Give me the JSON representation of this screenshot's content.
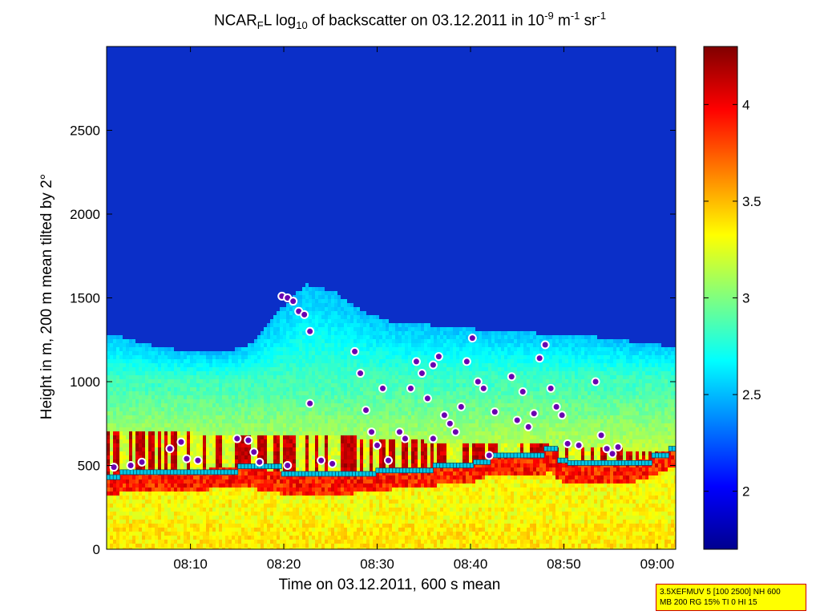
{
  "chart_data": {
    "type": "heatmap",
    "title_parts": {
      "pre": "NCAR",
      "sub1": "F",
      "mid": "L log",
      "sub2": "10",
      "post": " of backscatter on 03.12.2011 in 10",
      "sup1": "-9",
      "unit1": " m",
      "sup2": "-1",
      "unit2": " sr",
      "sup3": "-1"
    },
    "xlabel": "Time on 03.12.2011, 600 s mean",
    "ylabel": "Height in m, 200 m mean tilted by 2°",
    "xlim": [
      8.017,
      9.033
    ],
    "ylim": [
      0,
      3000
    ],
    "xticks": [
      {
        "v": 8.1667,
        "label": "08:10"
      },
      {
        "v": 8.3333,
        "label": "08:20"
      },
      {
        "v": 8.5,
        "label": "08:30"
      },
      {
        "v": 8.6667,
        "label": "08:40"
      },
      {
        "v": 8.8333,
        "label": "08:50"
      },
      {
        "v": 9.0,
        "label": "09:00"
      }
    ],
    "yticks": [
      {
        "v": 0,
        "label": "0"
      },
      {
        "v": 500,
        "label": "500"
      },
      {
        "v": 1000,
        "label": "1000"
      },
      {
        "v": 1500,
        "label": "1500"
      },
      {
        "v": 2000,
        "label": "2000"
      },
      {
        "v": 2500,
        "label": "2500"
      }
    ],
    "colorbar": {
      "min": 1.7,
      "max": 4.3,
      "ticks": [
        {
          "v": 2,
          "label": "2"
        },
        {
          "v": 2.5,
          "label": "2.5"
        },
        {
          "v": 3,
          "label": "3"
        },
        {
          "v": 3.5,
          "label": "3.5"
        },
        {
          "v": 4,
          "label": "4"
        }
      ]
    },
    "cloud_top_profile": [
      [
        8.03,
        1280
      ],
      [
        8.08,
        1230
      ],
      [
        8.12,
        1200
      ],
      [
        8.17,
        1180
      ],
      [
        8.22,
        1170
      ],
      [
        8.27,
        1220
      ],
      [
        8.3,
        1330
      ],
      [
        8.33,
        1450
      ],
      [
        8.37,
        1580
      ],
      [
        8.42,
        1540
      ],
      [
        8.47,
        1420
      ],
      [
        8.53,
        1350
      ],
      [
        8.58,
        1340
      ],
      [
        8.63,
        1330
      ],
      [
        8.68,
        1310
      ],
      [
        8.73,
        1300
      ],
      [
        8.78,
        1290
      ],
      [
        8.83,
        1280
      ],
      [
        8.88,
        1270
      ],
      [
        8.93,
        1250
      ],
      [
        9.0,
        1220
      ],
      [
        9.03,
        1210
      ]
    ],
    "surface_layer_top": [
      [
        8.02,
        700
      ],
      [
        8.2,
        690
      ],
      [
        8.4,
        680
      ],
      [
        8.6,
        640
      ],
      [
        8.8,
        620
      ],
      [
        9.03,
        580
      ]
    ],
    "mixing_height": [
      [
        8.017,
        430
      ],
      [
        8.04,
        460
      ],
      [
        8.15,
        460
      ],
      [
        8.25,
        495
      ],
      [
        8.33,
        450
      ],
      [
        8.45,
        450
      ],
      [
        8.5,
        470
      ],
      [
        8.6,
        500
      ],
      [
        8.67,
        520
      ],
      [
        8.7,
        560
      ],
      [
        8.8,
        565
      ],
      [
        8.8,
        600
      ],
      [
        8.82,
        530
      ],
      [
        8.84,
        515
      ],
      [
        8.95,
        515
      ],
      [
        8.99,
        560
      ],
      [
        9.02,
        600
      ]
    ],
    "cloud_base_points": [
      [
        8.03,
        490
      ],
      [
        8.06,
        500
      ],
      [
        8.08,
        520
      ],
      [
        8.13,
        600
      ],
      [
        8.15,
        640
      ],
      [
        8.16,
        540
      ],
      [
        8.18,
        530
      ],
      [
        8.25,
        660
      ],
      [
        8.33,
        1510
      ],
      [
        8.34,
        1500
      ],
      [
        8.35,
        1480
      ],
      [
        8.36,
        1420
      ],
      [
        8.37,
        1400
      ],
      [
        8.38,
        1300
      ],
      [
        8.34,
        500
      ],
      [
        8.38,
        870
      ],
      [
        8.4,
        530
      ],
      [
        8.42,
        510
      ],
      [
        8.46,
        1180
      ],
      [
        8.47,
        1050
      ],
      [
        8.48,
        830
      ],
      [
        8.49,
        700
      ],
      [
        8.5,
        620
      ],
      [
        8.51,
        960
      ],
      [
        8.52,
        530
      ],
      [
        8.54,
        700
      ],
      [
        8.55,
        660
      ],
      [
        8.56,
        960
      ],
      [
        8.57,
        1120
      ],
      [
        8.58,
        1050
      ],
      [
        8.59,
        900
      ],
      [
        8.6,
        1100
      ],
      [
        8.6,
        660
      ],
      [
        8.61,
        1150
      ],
      [
        8.62,
        800
      ],
      [
        8.63,
        750
      ],
      [
        8.64,
        700
      ],
      [
        8.65,
        850
      ],
      [
        8.66,
        1120
      ],
      [
        8.67,
        1260
      ],
      [
        8.68,
        1000
      ],
      [
        8.69,
        960
      ],
      [
        8.7,
        560
      ],
      [
        8.71,
        820
      ],
      [
        8.74,
        1030
      ],
      [
        8.75,
        770
      ],
      [
        8.76,
        940
      ],
      [
        8.77,
        730
      ],
      [
        8.78,
        810
      ],
      [
        8.79,
        1140
      ],
      [
        8.8,
        1220
      ],
      [
        8.81,
        960
      ],
      [
        8.82,
        850
      ],
      [
        8.83,
        800
      ],
      [
        8.84,
        630
      ],
      [
        8.86,
        620
      ],
      [
        8.89,
        1000
      ],
      [
        8.9,
        680
      ],
      [
        8.91,
        600
      ],
      [
        8.92,
        570
      ],
      [
        8.93,
        610
      ],
      [
        8.27,
        650
      ],
      [
        8.28,
        580
      ],
      [
        8.29,
        520
      ]
    ]
  },
  "info_box": {
    "line1": "3.5XEFMUV 5 [100 2500] NH 600",
    "line2": "MB 200 RG 15% TI 0 HI 15"
  }
}
